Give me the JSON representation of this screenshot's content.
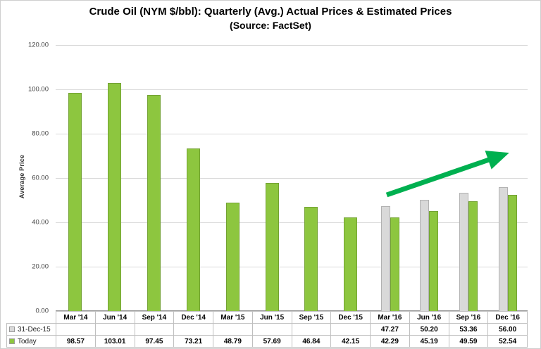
{
  "chart_data": {
    "type": "bar",
    "title": "Crude Oil (NYM $/bbl): Quarterly (Avg.) Actual Prices & Estimated Prices",
    "subtitle": "(Source: FactSet)",
    "ylabel": "Average Price",
    "ylim": [
      0,
      120
    ],
    "ytick_step": 20,
    "grid": true,
    "legend_position": "bottom-left-table",
    "categories": [
      "Mar '14",
      "Jun '14",
      "Sep '14",
      "Dec '14",
      "Mar '15",
      "Jun '15",
      "Sep '15",
      "Dec '15",
      "Mar '16",
      "Jun '16",
      "Sep '16",
      "Dec '16"
    ],
    "series": [
      {
        "name": "31-Dec-15",
        "color": "#d9d9d9",
        "values": [
          null,
          null,
          null,
          null,
          null,
          null,
          null,
          null,
          47.27,
          50.2,
          53.36,
          56.0
        ]
      },
      {
        "name": "Today",
        "color": "#8dc63f",
        "values": [
          98.57,
          103.01,
          97.45,
          73.21,
          48.79,
          57.69,
          46.84,
          42.15,
          42.29,
          45.19,
          49.59,
          52.54
        ]
      }
    ],
    "annotation": {
      "type": "arrow",
      "color": "#00b050",
      "direction": "up-right"
    }
  }
}
